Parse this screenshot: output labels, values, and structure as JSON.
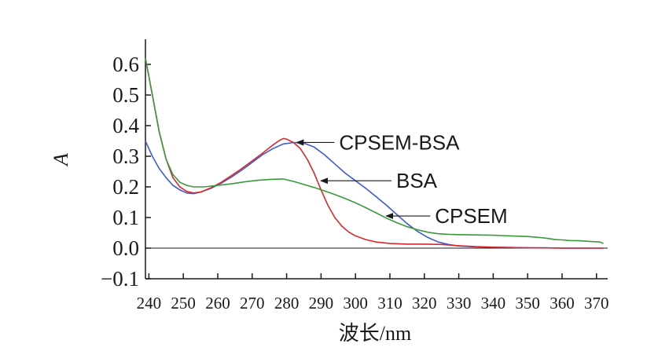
{
  "chart_data": {
    "type": "line",
    "xlabel": "波长/nm",
    "ylabel": "A",
    "xlim": [
      239,
      373
    ],
    "ylim": [
      -0.12,
      0.68
    ],
    "x_ticks": [
      240,
      250,
      260,
      270,
      280,
      290,
      300,
      310,
      320,
      330,
      340,
      350,
      360,
      370
    ],
    "y_ticks": [
      {
        "value": 0.6,
        "label": "0.6"
      },
      {
        "value": 0.5,
        "label": "0.5"
      },
      {
        "value": 0.4,
        "label": "0.4"
      },
      {
        "value": 0.3,
        "label": "0.3"
      },
      {
        "value": 0.2,
        "label": "0.2"
      },
      {
        "value": 0.1,
        "label": "0.1"
      },
      {
        "value": 0.0,
        "label": "0.0"
      },
      {
        "value": -0.1,
        "label": "−0.1"
      }
    ],
    "grid": false,
    "baseline_at_zero": true,
    "series": [
      {
        "name": "CPSEM-BSA",
        "color": "#3f5bd0",
        "points": [
          [
            239,
            0.35
          ],
          [
            241,
            0.3
          ],
          [
            243,
            0.26
          ],
          [
            245,
            0.23
          ],
          [
            247,
            0.205
          ],
          [
            249,
            0.19
          ],
          [
            251,
            0.18
          ],
          [
            253,
            0.178
          ],
          [
            255,
            0.183
          ],
          [
            258,
            0.195
          ],
          [
            261,
            0.212
          ],
          [
            264,
            0.232
          ],
          [
            267,
            0.255
          ],
          [
            270,
            0.28
          ],
          [
            273,
            0.305
          ],
          [
            276,
            0.325
          ],
          [
            279,
            0.34
          ],
          [
            282,
            0.345
          ],
          [
            285,
            0.343
          ],
          [
            288,
            0.33
          ],
          [
            291,
            0.305
          ],
          [
            294,
            0.275
          ],
          [
            297,
            0.245
          ],
          [
            300,
            0.22
          ],
          [
            303,
            0.195
          ],
          [
            306,
            0.168
          ],
          [
            309,
            0.14
          ],
          [
            312,
            0.11
          ],
          [
            315,
            0.08
          ],
          [
            318,
            0.055
          ],
          [
            321,
            0.035
          ],
          [
            324,
            0.02
          ],
          [
            327,
            0.012
          ],
          [
            330,
            0.007
          ],
          [
            335,
            0.004
          ],
          [
            340,
            0.003
          ],
          [
            345,
            0.002
          ],
          [
            350,
            0.001
          ],
          [
            355,
            0.001
          ],
          [
            360,
            0.0
          ],
          [
            365,
            0.0
          ],
          [
            372,
            0.0
          ]
        ]
      },
      {
        "name": "BSA",
        "color": "#d8282e",
        "points": [
          [
            239,
            0.62
          ],
          [
            241,
            0.5
          ],
          [
            243,
            0.38
          ],
          [
            245,
            0.29
          ],
          [
            247,
            0.23
          ],
          [
            249,
            0.2
          ],
          [
            251,
            0.185
          ],
          [
            253,
            0.18
          ],
          [
            255,
            0.183
          ],
          [
            258,
            0.197
          ],
          [
            261,
            0.215
          ],
          [
            264,
            0.237
          ],
          [
            267,
            0.26
          ],
          [
            270,
            0.285
          ],
          [
            273,
            0.31
          ],
          [
            276,
            0.337
          ],
          [
            278,
            0.352
          ],
          [
            279,
            0.358
          ],
          [
            280,
            0.356
          ],
          [
            282,
            0.345
          ],
          [
            284,
            0.325
          ],
          [
            286,
            0.29
          ],
          [
            288,
            0.245
          ],
          [
            290,
            0.19
          ],
          [
            292,
            0.14
          ],
          [
            294,
            0.1
          ],
          [
            296,
            0.072
          ],
          [
            298,
            0.053
          ],
          [
            300,
            0.04
          ],
          [
            303,
            0.028
          ],
          [
            306,
            0.02
          ],
          [
            310,
            0.015
          ],
          [
            315,
            0.013
          ],
          [
            320,
            0.013
          ],
          [
            325,
            0.012
          ],
          [
            330,
            0.008
          ],
          [
            335,
            0.005
          ],
          [
            340,
            0.003
          ],
          [
            345,
            0.002
          ],
          [
            350,
            0.001
          ],
          [
            360,
            0.0
          ],
          [
            372,
            0.0
          ]
        ]
      },
      {
        "name": "CPSEM",
        "color": "#3a9a3a",
        "points": [
          [
            239,
            0.62
          ],
          [
            241,
            0.5
          ],
          [
            243,
            0.38
          ],
          [
            245,
            0.29
          ],
          [
            247,
            0.24
          ],
          [
            249,
            0.215
          ],
          [
            251,
            0.205
          ],
          [
            253,
            0.2
          ],
          [
            256,
            0.2
          ],
          [
            260,
            0.205
          ],
          [
            264,
            0.21
          ],
          [
            268,
            0.217
          ],
          [
            272,
            0.222
          ],
          [
            276,
            0.225
          ],
          [
            279,
            0.226
          ],
          [
            282,
            0.218
          ],
          [
            285,
            0.208
          ],
          [
            288,
            0.198
          ],
          [
            291,
            0.187
          ],
          [
            294,
            0.175
          ],
          [
            297,
            0.162
          ],
          [
            300,
            0.148
          ],
          [
            303,
            0.132
          ],
          [
            306,
            0.115
          ],
          [
            309,
            0.098
          ],
          [
            312,
            0.083
          ],
          [
            315,
            0.07
          ],
          [
            318,
            0.06
          ],
          [
            321,
            0.052
          ],
          [
            324,
            0.047
          ],
          [
            327,
            0.045
          ],
          [
            330,
            0.044
          ],
          [
            335,
            0.043
          ],
          [
            340,
            0.042
          ],
          [
            345,
            0.04
          ],
          [
            350,
            0.038
          ],
          [
            355,
            0.033
          ],
          [
            358,
            0.028
          ],
          [
            360,
            0.027
          ],
          [
            362,
            0.025
          ],
          [
            365,
            0.024
          ],
          [
            368,
            0.022
          ],
          [
            371,
            0.02
          ],
          [
            372,
            0.015
          ]
        ]
      }
    ],
    "annotations": [
      {
        "text": "CPSEM-BSA",
        "x": 282,
        "y": 0.345,
        "series": "CPSEM-BSA"
      },
      {
        "text": "BSA",
        "x": 289,
        "y": 0.22,
        "series": "BSA"
      },
      {
        "text": "CPSEM",
        "x": 308,
        "y": 0.105,
        "series": "CPSEM"
      }
    ]
  }
}
